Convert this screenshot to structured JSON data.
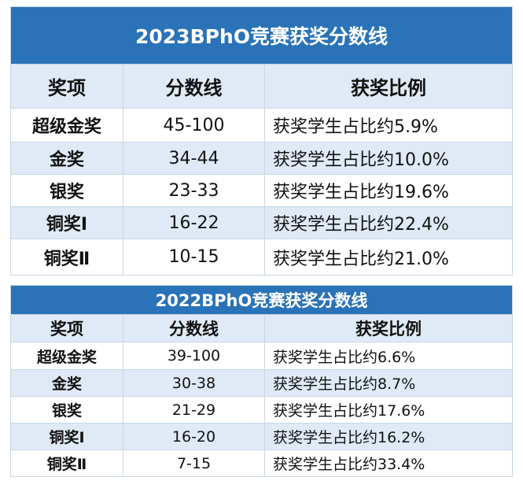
{
  "tables": [
    {
      "title": "2023BPhO竞赛获奖分数线",
      "header": [
        "奖项",
        "分数线",
        "获奖比例"
      ],
      "rows": [
        [
          "超级金奖",
          "45-100",
          "获奖学生占比约5.9%"
        ],
        [
          "金奖",
          "34-44",
          "获奖学生占比约10.0%"
        ],
        [
          "银奖",
          "23-33",
          "获奖学生占比约19.6%"
        ],
        [
          "铜奖Ⅰ",
          "16-22",
          "获奖学生占比约22.4%"
        ],
        [
          "铜奖Ⅱ",
          "10-15",
          "获奖学生占比约21.0%"
        ]
      ]
    },
    {
      "title": "2022BPhO竞赛获奖分数线",
      "header": [
        "奖项",
        "分数线",
        "获奖比例"
      ],
      "rows": [
        [
          "超级金奖",
          "39-100",
          "获奖学生占比约6.6%"
        ],
        [
          "金奖",
          "30-38",
          "获奖学生占比约8.7%"
        ],
        [
          "银奖",
          "21-29",
          "获奖学生占比约17.6%"
        ],
        [
          "铜奖Ⅰ",
          "16-20",
          "获奖学生占比约16.2%"
        ],
        [
          "铜奖Ⅱ",
          "7-15",
          "获奖学生占比约33.4%"
        ]
      ]
    }
  ]
}
